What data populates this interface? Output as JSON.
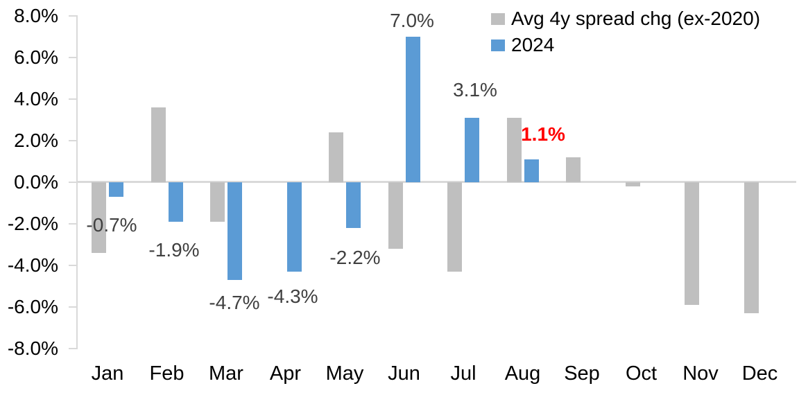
{
  "chart_data": {
    "type": "bar",
    "title": "",
    "xlabel": "",
    "ylabel": "",
    "categories": [
      "Jan",
      "Feb",
      "Mar",
      "Apr",
      "May",
      "Jun",
      "Jul",
      "Aug",
      "Sep",
      "Oct",
      "Nov",
      "Dec"
    ],
    "series": [
      {
        "name": "Avg 4y spread chg (ex-2020)",
        "color": "#BFBFBF",
        "values": [
          -3.4,
          3.6,
          -1.9,
          0.0,
          2.4,
          -3.2,
          -4.3,
          3.1,
          1.2,
          -0.2,
          -5.9,
          -6.3
        ]
      },
      {
        "name": "2024",
        "color": "#5B9BD5",
        "values": [
          -0.7,
          -1.9,
          -4.7,
          -4.3,
          -2.2,
          7.0,
          3.1,
          1.1,
          null,
          null,
          null,
          null
        ]
      }
    ],
    "ylim": [
      -8,
      8
    ],
    "ytick_step": 2,
    "ytick_labels": [
      "8.0%",
      "6.0%",
      "4.0%",
      "2.0%",
      "0.0%",
      "-2.0%",
      "-4.0%",
      "-6.0%",
      "-8.0%"
    ],
    "grid": false,
    "legend_position": "top-right",
    "data_labels": [
      {
        "category": "Jan",
        "text": "-0.7%",
        "color": "#404040",
        "bold": false
      },
      {
        "category": "Feb",
        "text": "-1.9%",
        "color": "#404040",
        "bold": false
      },
      {
        "category": "Mar",
        "text": "-4.7%",
        "color": "#404040",
        "bold": false
      },
      {
        "category": "Apr",
        "text": "-4.3%",
        "color": "#404040",
        "bold": false
      },
      {
        "category": "May",
        "text": "-2.2%",
        "color": "#404040",
        "bold": false
      },
      {
        "category": "Jun",
        "text": "7.0%",
        "color": "#404040",
        "bold": false
      },
      {
        "category": "Jul",
        "text": "3.1%",
        "color": "#404040",
        "bold": false
      },
      {
        "category": "Aug",
        "text": "1.1%",
        "color": "#FF0000",
        "bold": true
      }
    ],
    "axis_colors": {
      "line": "#d9d9d9",
      "text": "#000000"
    }
  }
}
